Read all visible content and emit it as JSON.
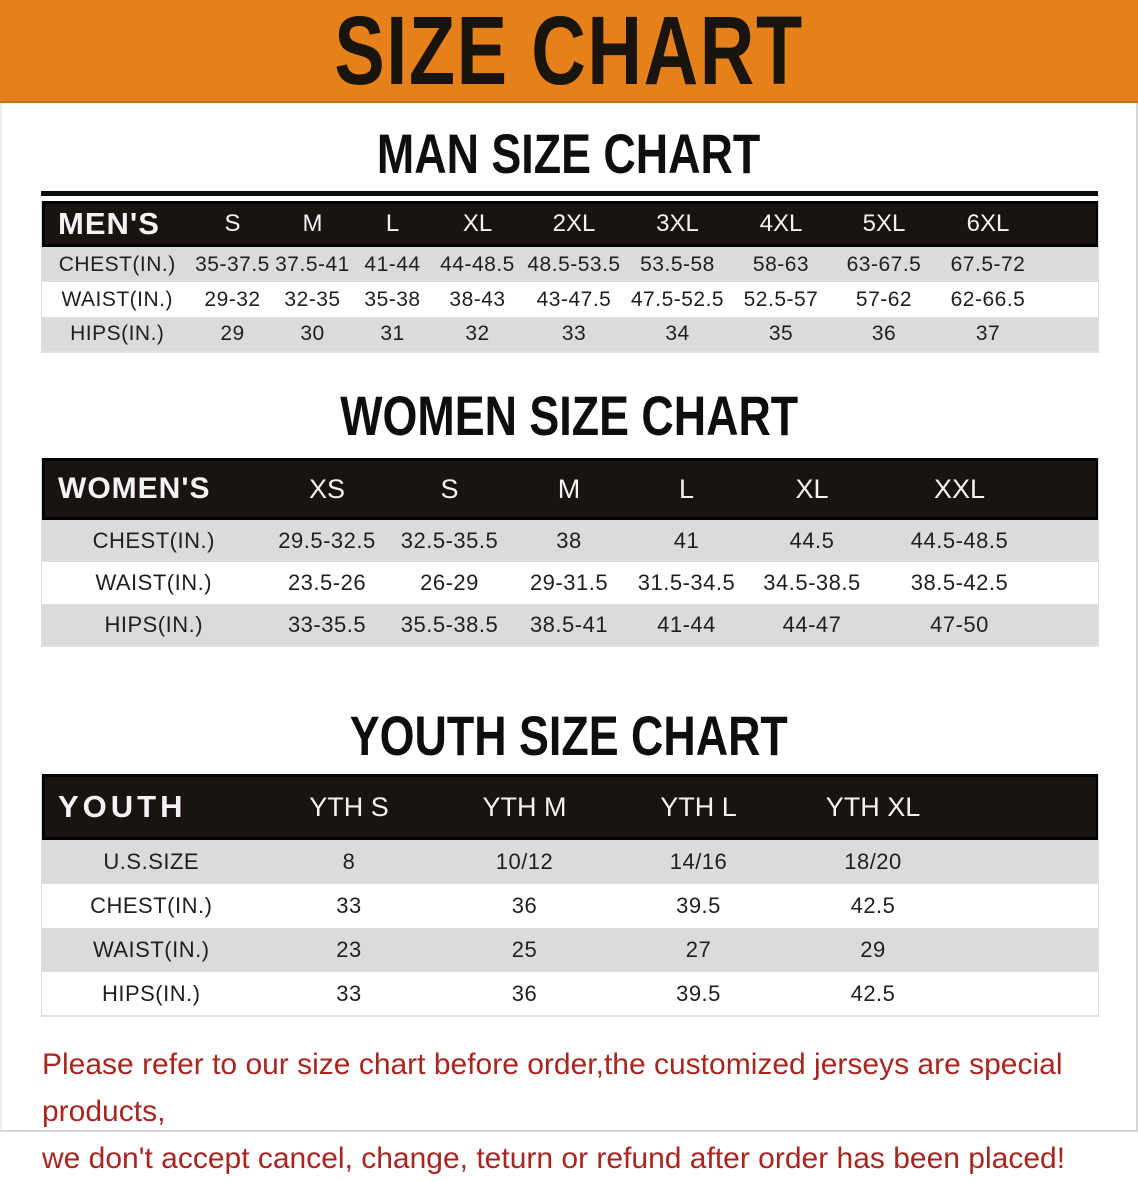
{
  "banner": {
    "title": "SIZE CHART",
    "bg_color": "#E6801A",
    "text_color": "#19140E"
  },
  "colors": {
    "table_header_bg": "#191412",
    "row_gray": "#DBDBDB",
    "row_white": "#FFFFFF",
    "note_red": "#A92520"
  },
  "tables": {
    "men": {
      "heading": "MAN SIZE CHART",
      "label": "MEN'S",
      "columns": [
        "S",
        "M",
        "L",
        "XL",
        "2XL",
        "3XL",
        "4XL",
        "5XL",
        "6XL"
      ],
      "rows": [
        {
          "label": "CHEST(IN.)",
          "values": [
            "35-37.5",
            "37.5-41",
            "41-44",
            "44-48.5",
            "48.5-53.5",
            "53.5-58",
            "58-63",
            "63-67.5",
            "67.5-72"
          ]
        },
        {
          "label": "WAIST(IN.)",
          "values": [
            "29-32",
            "32-35",
            "35-38",
            "38-43",
            "43-47.5",
            "47.5-52.5",
            "52.5-57",
            "57-62",
            "62-66.5"
          ]
        },
        {
          "label": "HIPS(IN.)",
          "values": [
            "29",
            "30",
            "31",
            "32",
            "33",
            "34",
            "35",
            "36",
            "37"
          ]
        }
      ]
    },
    "women": {
      "heading": "WOMEN SIZE CHART",
      "label": "WOMEN'S",
      "columns": [
        "XS",
        "S",
        "M",
        "L",
        "XL",
        "XXL"
      ],
      "rows": [
        {
          "label": "CHEST(IN.)",
          "values": [
            "29.5-32.5",
            "32.5-35.5",
            "38",
            "41",
            "44.5",
            "44.5-48.5"
          ]
        },
        {
          "label": "WAIST(IN.)",
          "values": [
            "23.5-26",
            "26-29",
            "29-31.5",
            "31.5-34.5",
            "34.5-38.5",
            "38.5-42.5"
          ]
        },
        {
          "label": "HIPS(IN.)",
          "values": [
            "33-35.5",
            "35.5-38.5",
            "38.5-41",
            "41-44",
            "44-47",
            "47-50"
          ]
        }
      ]
    },
    "youth": {
      "heading": "YOUTH SIZE CHART",
      "label": "YOUTH",
      "columns": [
        "YTH S",
        "YTH M",
        "YTH L",
        "YTH XL"
      ],
      "rows": [
        {
          "label": "U.S.SIZE",
          "values": [
            "8",
            "10/12",
            "14/16",
            "18/20"
          ]
        },
        {
          "label": "CHEST(IN.)",
          "values": [
            "33",
            "36",
            "39.5",
            "42.5"
          ]
        },
        {
          "label": "WAIST(IN.)",
          "values": [
            "23",
            "25",
            "27",
            "29"
          ]
        },
        {
          "label": "HIPS(IN.)",
          "values": [
            "33",
            "36",
            "39.5",
            "42.5"
          ]
        }
      ]
    }
  },
  "note": {
    "line1": "Please refer to our size chart before order,the customized jerseys are special products,",
    "line2": "we don't accept cancel, change, teturn or refund after order has been placed!"
  }
}
